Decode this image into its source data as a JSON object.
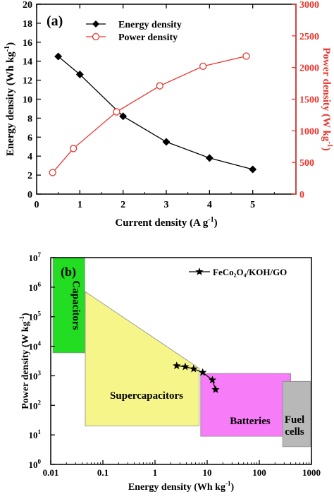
{
  "chart_data": [
    {
      "type": "line",
      "panel_label": "(a)",
      "xlabel": "Current density (A g",
      "xlabel_sup": "-1",
      "xlabel_close": ")",
      "ylabel": "Energy density (Wh kg",
      "ylabel_sup": "-1",
      "ylabel_close": ")",
      "y2label": "Power density (W kg",
      "y2label_sup": "-1",
      "y2label_close": ")",
      "xlim": [
        0,
        6
      ],
      "ylim": [
        0,
        20
      ],
      "y2lim": [
        0,
        3000
      ],
      "xticks": [
        "0",
        "1",
        "2",
        "3",
        "4",
        "5"
      ],
      "yticks": [
        "0",
        "2",
        "4",
        "6",
        "8",
        "10",
        "12",
        "14",
        "16",
        "18",
        "20"
      ],
      "y2ticks": [
        "0",
        "500",
        "1000",
        "1500",
        "2000",
        "2500",
        "3000"
      ],
      "legend_position": "top-left",
      "colors": {
        "energy": "#000000",
        "power": "#e8362e",
        "axis_right": "#e8362e"
      },
      "series": [
        {
          "name": "Energy density",
          "axis": "left",
          "marker": "diamond",
          "x": [
            0.5,
            1,
            2,
            3,
            4,
            5
          ],
          "values": [
            14.5,
            12.6,
            8.2,
            5.5,
            3.8,
            2.6
          ]
        },
        {
          "name": "Power density",
          "axis": "right",
          "marker": "open-circle",
          "x": [
            0.37,
            0.85,
            1.85,
            2.85,
            3.85,
            4.85
          ],
          "values": [
            340,
            720,
            1300,
            1710,
            2020,
            2180
          ]
        }
      ]
    },
    {
      "type": "scatter",
      "subtype": "ragone",
      "panel_label": "(b)",
      "xscale": "log",
      "yscale": "log",
      "xlabel": "Energy density (Wh kg",
      "xlabel_sup": "-1",
      "xlabel_close": ")",
      "ylabel": "Power density (W kg",
      "ylabel_sup": "-1",
      "ylabel_close": ")",
      "xlim": [
        0.01,
        1000
      ],
      "ylim": [
        1,
        10000000
      ],
      "xticks": [
        "0.01",
        "0.1",
        "1",
        "10",
        "100",
        "1000"
      ],
      "yticks": [
        {
          "base": "10",
          "exp": "0"
        },
        {
          "base": "10",
          "exp": "1"
        },
        {
          "base": "10",
          "exp": "2"
        },
        {
          "base": "10",
          "exp": "3"
        },
        {
          "base": "10",
          "exp": "4"
        },
        {
          "base": "10",
          "exp": "5"
        },
        {
          "base": "10",
          "exp": "6"
        },
        {
          "base": "10",
          "exp": "7"
        }
      ],
      "legend_position": "top-right",
      "regions": [
        {
          "name": "Capacitors",
          "color": "#22dd22",
          "lines": [
            "Capacitors"
          ],
          "polygon": [
            [
              0.011,
              6000
            ],
            [
              0.045,
              6000
            ],
            [
              0.045,
              10000000
            ],
            [
              0.011,
              10000000
            ]
          ]
        },
        {
          "name": "Supercapacitors",
          "color": "#f5f58a",
          "lines": [
            "Supercapacitors"
          ],
          "polygon": [
            [
              0.046,
              20
            ],
            [
              7,
              20
            ],
            [
              7,
              1800
            ],
            [
              0.046,
              700000
            ]
          ]
        },
        {
          "name": "Batteries",
          "color": "#f77cf7",
          "lines": [
            "Batteries"
          ],
          "polygon": [
            [
              7.5,
              9
            ],
            [
              400,
              9
            ],
            [
              400,
              1200
            ],
            [
              7.5,
              1200
            ]
          ]
        },
        {
          "name": "Fuel cells",
          "color": "#b8b8b8",
          "lines": [
            "Fuel",
            "cells"
          ],
          "polygon": [
            [
              280,
              4
            ],
            [
              950,
              4
            ],
            [
              950,
              650
            ],
            [
              280,
              650
            ]
          ]
        }
      ],
      "series": [
        {
          "name": "FeCo₂O₄/KOH/GO",
          "marker": "star",
          "x": [
            2.6,
            3.8,
            5.5,
            8.2,
            12.6,
            14.5
          ],
          "values": [
            2180,
            2020,
            1710,
            1300,
            720,
            340
          ]
        }
      ]
    }
  ]
}
